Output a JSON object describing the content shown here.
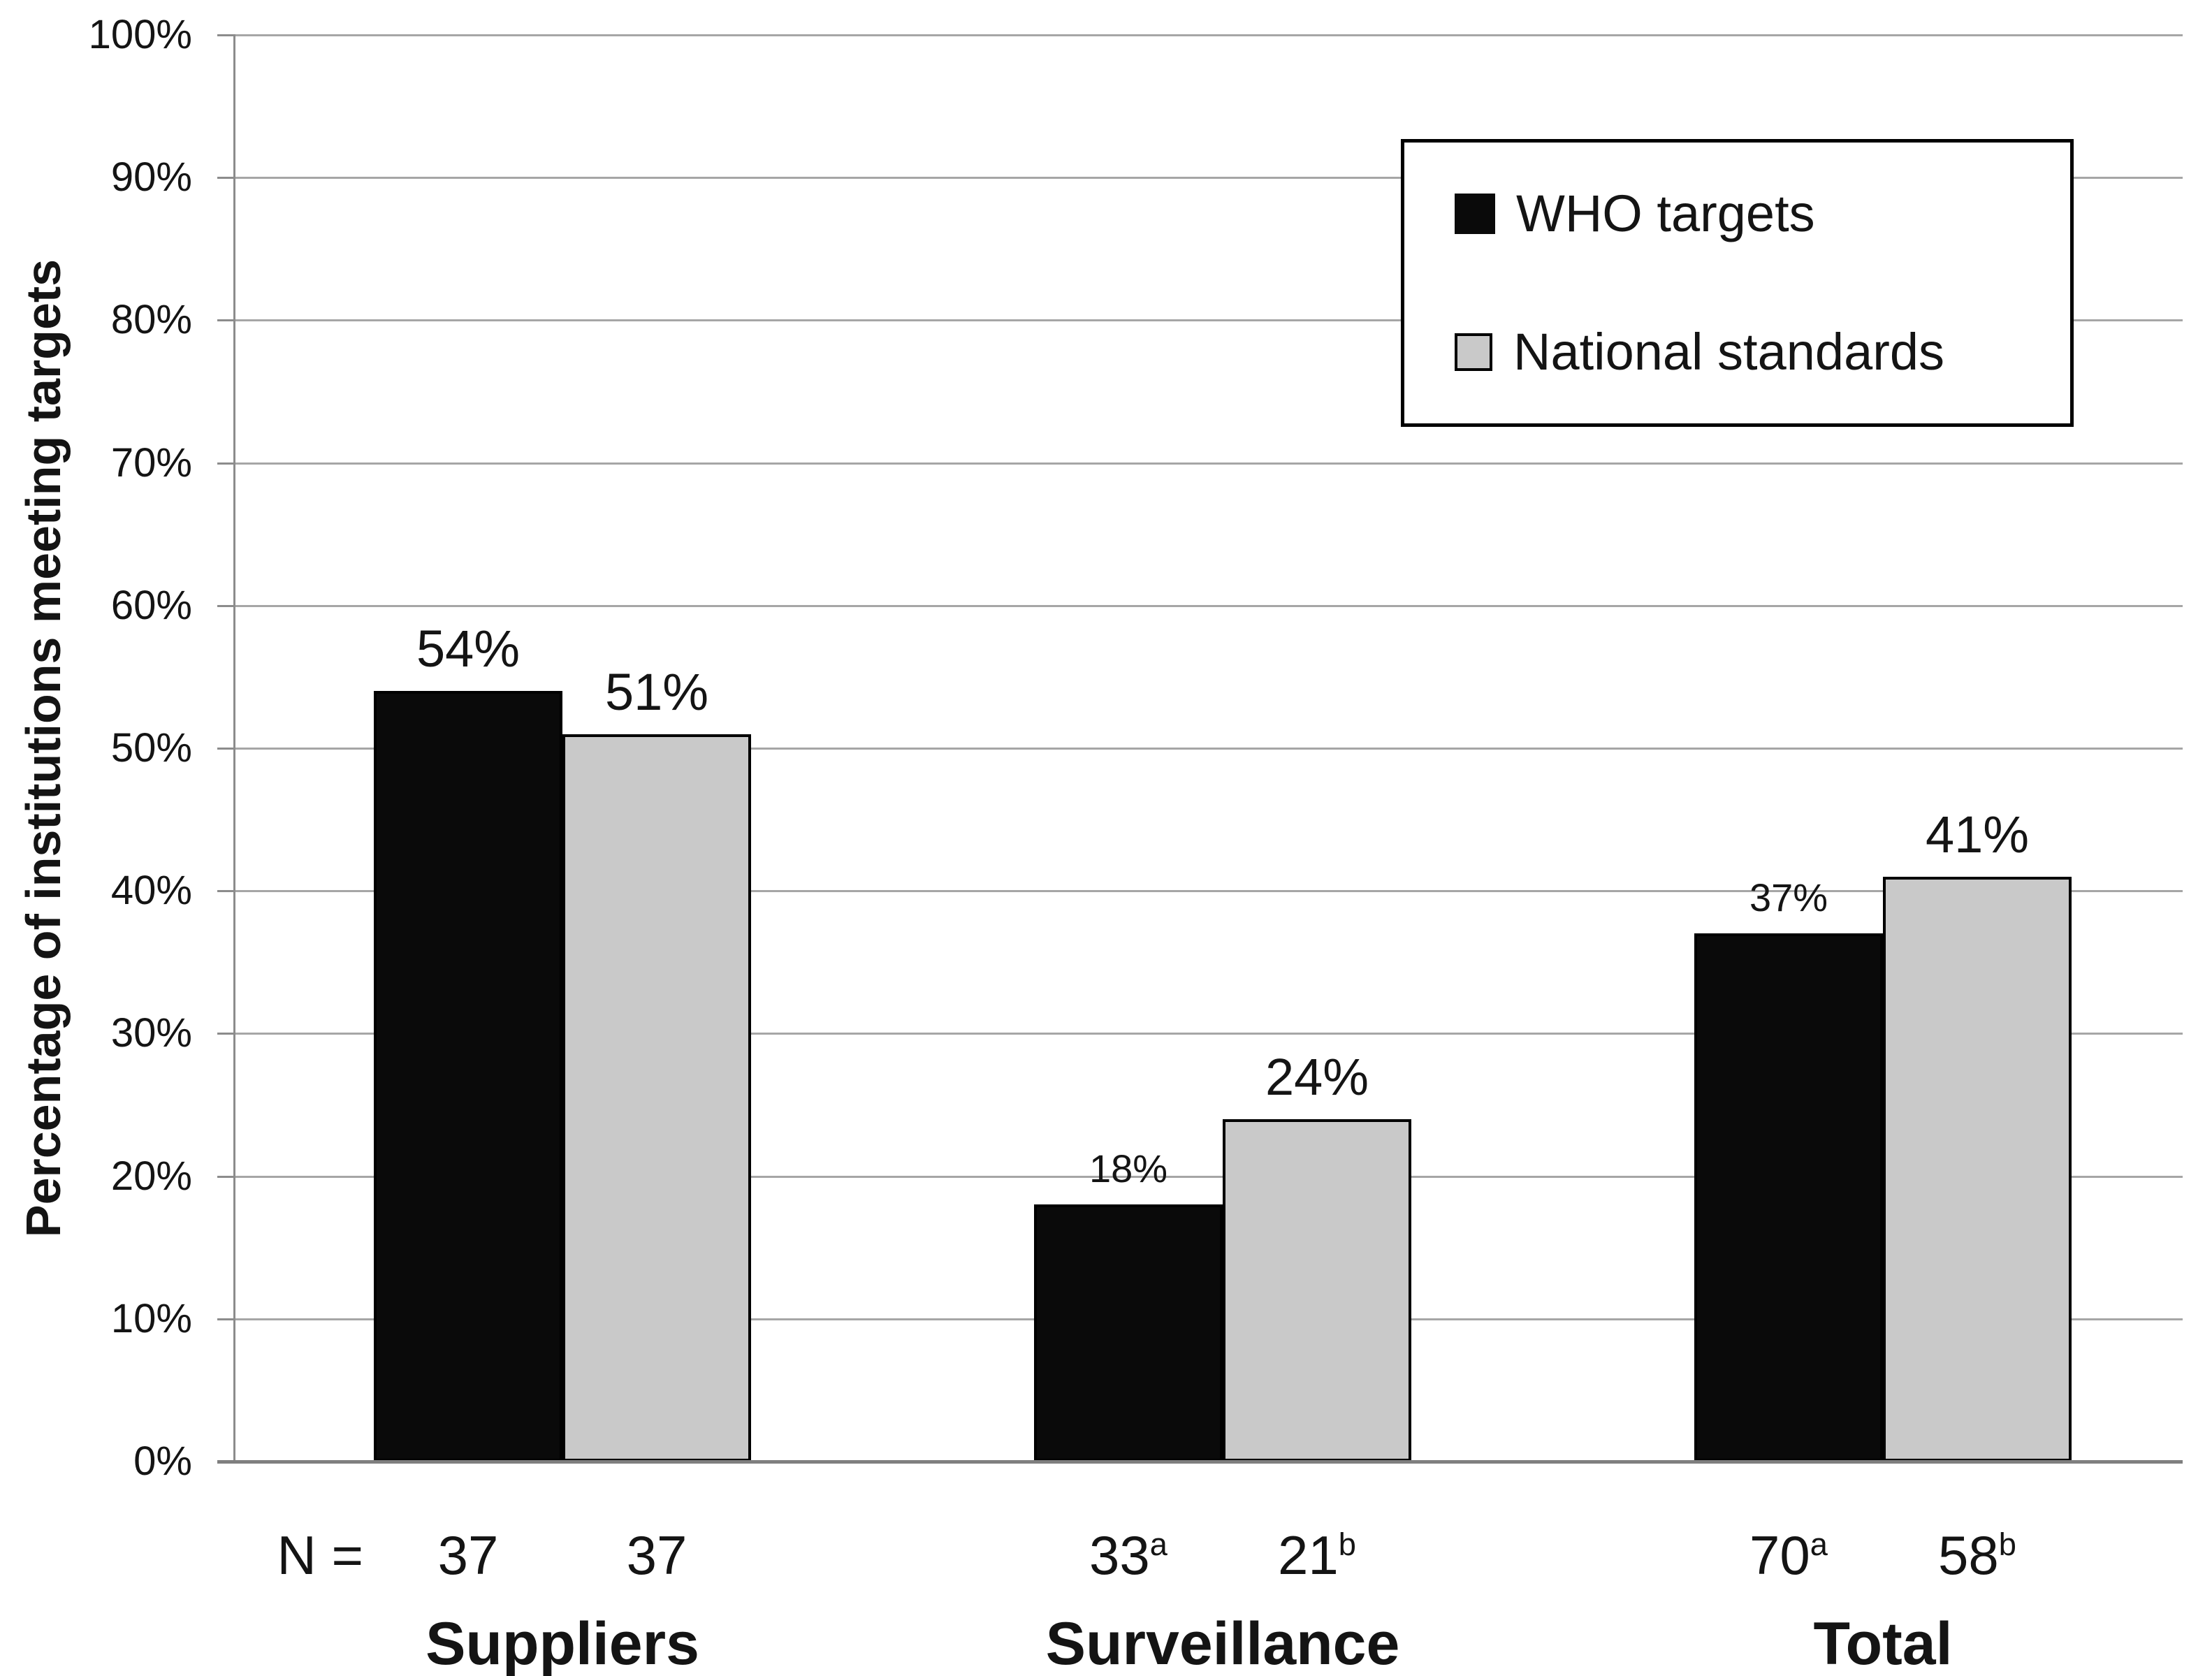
{
  "chart_data": {
    "type": "bar",
    "title": "",
    "ylabel": "Percentage of institutions meeting targets",
    "ylim": [
      0,
      100
    ],
    "y_ticks": [
      "0%",
      "10%",
      "20%",
      "30%",
      "40%",
      "50%",
      "60%",
      "70%",
      "80%",
      "90%",
      "100%"
    ],
    "grid": true,
    "legend_position": "top-right",
    "legend": {
      "entries": [
        {
          "label": "WHO targets",
          "color": "#0a0a0a"
        },
        {
          "label": "National standards",
          "color": "#c9c9c9"
        }
      ]
    },
    "categories": [
      "Suppliers",
      "Surveillance",
      "Total"
    ],
    "x_axis_note_prefix": "N =",
    "series": [
      {
        "name": "WHO targets",
        "color": "#0a0a0a",
        "values": [
          54,
          18,
          37
        ],
        "value_labels": [
          "54%",
          "18%",
          "37%"
        ],
        "value_label_emphasis": [
          "large",
          "small",
          "small"
        ],
        "n_labels": [
          {
            "base": "37",
            "sup": ""
          },
          {
            "base": "33",
            "sup": "a"
          },
          {
            "base": "70",
            "sup": "a"
          }
        ]
      },
      {
        "name": "National standards",
        "color": "#c9c9c9",
        "values": [
          51,
          24,
          41
        ],
        "value_labels": [
          "51%",
          "24%",
          "41%"
        ],
        "value_label_emphasis": [
          "large",
          "large",
          "large"
        ],
        "n_labels": [
          {
            "base": "37",
            "sup": ""
          },
          {
            "base": "21",
            "sup": "b"
          },
          {
            "base": "58",
            "sup": "b"
          }
        ]
      }
    ],
    "colors": {
      "grid": "#a6a6a6",
      "axis": "#8c8c8c",
      "text": "#141414",
      "background": "#ffffff",
      "bar_border": "#000000"
    }
  }
}
